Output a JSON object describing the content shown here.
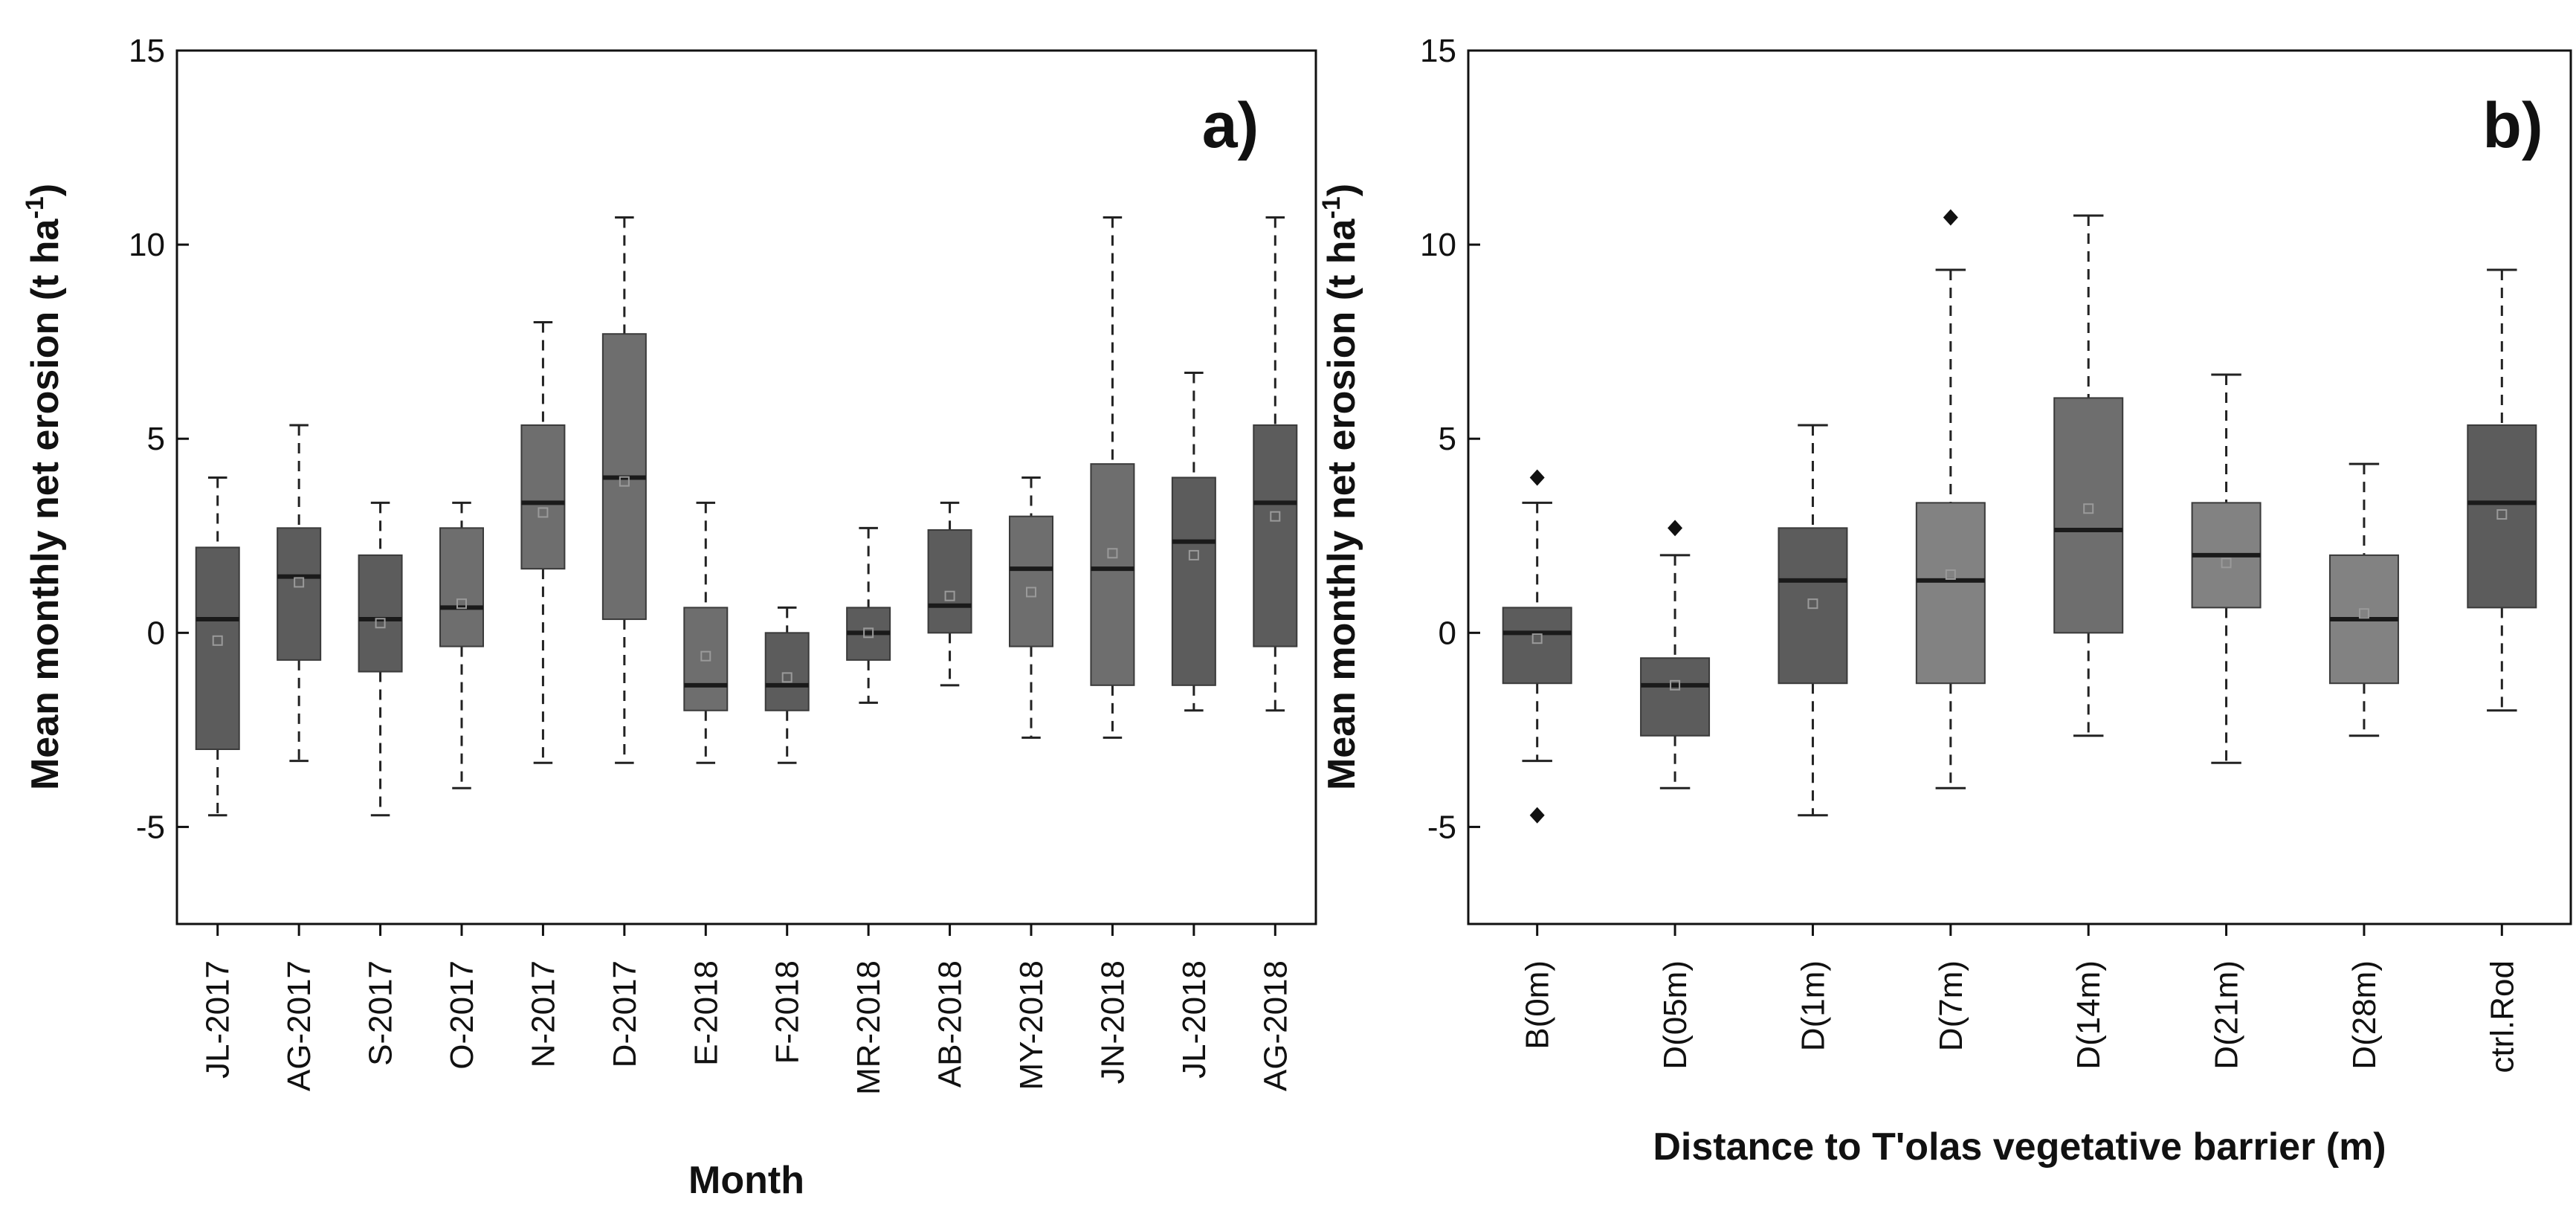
{
  "chart_data": [
    {
      "type": "box",
      "panel_label": "a)",
      "xlabel": "Month",
      "ylabel": "Mean monthly net erosion (t ha",
      "ylabel_sup": "-1",
      "ylabel_end": ")",
      "ylim": [
        -7.5,
        15
      ],
      "yticks": [
        -5,
        0,
        5,
        10,
        15
      ],
      "ytick_labels": [
        "-5",
        "0",
        "5",
        "10",
        "15"
      ],
      "categories": [
        "JL-2017",
        "AG-2017",
        "S-2017",
        "O-2017",
        "N-2017",
        "D-2017",
        "E-2018",
        "F-2018",
        "MR-2018",
        "AB-2018",
        "MY-2018",
        "JN-2018",
        "JL-2018",
        "AG-2018"
      ],
      "boxes": [
        {
          "whisker_low": -4.7,
          "q1": -3.0,
          "median": 0.35,
          "q3": 2.2,
          "whisker_high": 4.0,
          "mean": -0.2,
          "shade": "dark"
        },
        {
          "whisker_low": -3.3,
          "q1": -0.7,
          "median": 1.45,
          "q3": 2.7,
          "whisker_high": 5.35,
          "mean": 1.3,
          "shade": "dark"
        },
        {
          "whisker_low": -4.7,
          "q1": -1.0,
          "median": 0.35,
          "q3": 2.0,
          "whisker_high": 3.35,
          "mean": 0.25,
          "shade": "dark"
        },
        {
          "whisker_low": -4.0,
          "q1": -0.35,
          "median": 0.65,
          "q3": 2.7,
          "whisker_high": 3.35,
          "mean": 0.75,
          "shade": "medium"
        },
        {
          "whisker_low": -3.35,
          "q1": 1.65,
          "median": 3.35,
          "q3": 5.35,
          "whisker_high": 8.0,
          "mean": 3.1,
          "shade": "medium"
        },
        {
          "whisker_low": -3.35,
          "q1": 0.35,
          "median": 4.0,
          "q3": 7.7,
          "whisker_high": 10.7,
          "mean": 3.9,
          "shade": "medium"
        },
        {
          "whisker_low": -3.35,
          "q1": -2.0,
          "median": -1.35,
          "q3": 0.65,
          "whisker_high": 3.35,
          "mean": -0.6,
          "shade": "medium"
        },
        {
          "whisker_low": -3.35,
          "q1": -2.0,
          "median": -1.35,
          "q3": 0.0,
          "whisker_high": 0.65,
          "mean": -1.15,
          "shade": "dark"
        },
        {
          "whisker_low": -1.8,
          "q1": -0.7,
          "median": 0.0,
          "q3": 0.65,
          "whisker_high": 2.7,
          "mean": 0.0,
          "shade": "dark"
        },
        {
          "whisker_low": -1.35,
          "q1": 0.0,
          "median": 0.7,
          "q3": 2.65,
          "whisker_high": 3.35,
          "mean": 0.95,
          "shade": "dark"
        },
        {
          "whisker_low": -2.7,
          "q1": -0.35,
          "median": 1.65,
          "q3": 3.0,
          "whisker_high": 4.0,
          "mean": 1.05,
          "shade": "medium"
        },
        {
          "whisker_low": -2.7,
          "q1": -1.35,
          "median": 1.65,
          "q3": 4.35,
          "whisker_high": 10.7,
          "mean": 2.05,
          "shade": "medium"
        },
        {
          "whisker_low": -2.0,
          "q1": -1.35,
          "median": 2.35,
          "q3": 4.0,
          "whisker_high": 6.7,
          "mean": 2.0,
          "shade": "dark"
        },
        {
          "whisker_low": -2.0,
          "q1": -0.35,
          "median": 3.35,
          "q3": 5.35,
          "whisker_high": 10.7,
          "mean": 3.0,
          "shade": "dark"
        }
      ],
      "outliers": []
    },
    {
      "type": "box",
      "panel_label": "b)",
      "xlabel": "Distance to T'olas vegetative barrier (m)",
      "ylabel": "Mean monthly net erosion (t ha",
      "ylabel_sup": "-1",
      "ylabel_end": ")",
      "ylim": [
        -7.5,
        15
      ],
      "yticks": [
        -5,
        0,
        5,
        10,
        15
      ],
      "ytick_labels": [
        "-5",
        "0",
        "5",
        "10",
        "15"
      ],
      "categories": [
        "B(0m)",
        "D(05m)",
        "D(1m)",
        "D(7m)",
        "D(14m)",
        "D(21m)",
        "D(28m)",
        "ctrl.Rod"
      ],
      "boxes": [
        {
          "whisker_low": -3.3,
          "q1": -1.3,
          "median": 0.0,
          "q3": 0.65,
          "whisker_high": 3.35,
          "mean": -0.15,
          "shade": "dark"
        },
        {
          "whisker_low": -4.0,
          "q1": -2.65,
          "median": -1.35,
          "q3": -0.65,
          "whisker_high": 2.0,
          "mean": -1.35,
          "shade": "dark"
        },
        {
          "whisker_low": -4.7,
          "q1": -1.3,
          "median": 1.35,
          "q3": 2.7,
          "whisker_high": 5.35,
          "mean": 0.75,
          "shade": "dark"
        },
        {
          "whisker_low": -4.0,
          "q1": -1.3,
          "median": 1.35,
          "q3": 3.35,
          "whisker_high": 9.35,
          "mean": 1.5,
          "shade": "light"
        },
        {
          "whisker_low": -2.65,
          "q1": 0.0,
          "median": 2.65,
          "q3": 6.05,
          "whisker_high": 10.75,
          "mean": 3.2,
          "shade": "medium"
        },
        {
          "whisker_low": -3.35,
          "q1": 0.65,
          "median": 2.0,
          "q3": 3.35,
          "whisker_high": 6.65,
          "mean": 1.8,
          "shade": "light"
        },
        {
          "whisker_low": -2.65,
          "q1": -1.3,
          "median": 0.35,
          "q3": 2.0,
          "whisker_high": 4.35,
          "mean": 0.5,
          "shade": "light"
        },
        {
          "whisker_low": -2.0,
          "q1": 0.65,
          "median": 3.35,
          "q3": 5.35,
          "whisker_high": 9.35,
          "mean": 3.05,
          "shade": "dark"
        }
      ],
      "outliers": [
        {
          "category_index": 0,
          "y": 4.0
        },
        {
          "category_index": 0,
          "y": -4.7
        },
        {
          "category_index": 1,
          "y": 2.7
        },
        {
          "category_index": 3,
          "y": 10.7
        }
      ]
    }
  ],
  "colors": {
    "dark": "#5c5c5c",
    "medium": "#6e6e6e",
    "light": "#828282",
    "median": "#1a1a1a",
    "whisker": "#222222",
    "mean_marker": "#9a9a9a",
    "axis": "#111111"
  }
}
